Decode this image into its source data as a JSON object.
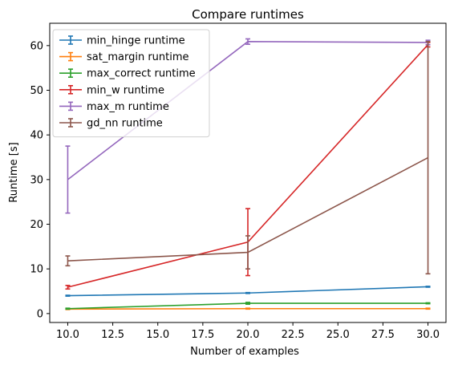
{
  "chart_data": {
    "type": "line",
    "title": "Compare runtimes",
    "xlabel": "Number of examples",
    "ylabel": "Runtime [s]",
    "xlim": [
      9.0,
      31.0
    ],
    "ylim": [
      -2.0,
      65.0
    ],
    "xticks": [
      10.0,
      12.5,
      15.0,
      17.5,
      20.0,
      22.5,
      25.0,
      27.5,
      30.0
    ],
    "xtick_labels": [
      "10.0",
      "12.5",
      "15.0",
      "17.5",
      "20.0",
      "22.5",
      "25.0",
      "27.5",
      "30.0"
    ],
    "yticks": [
      0,
      10,
      20,
      30,
      40,
      50,
      60
    ],
    "ytick_labels": [
      "0",
      "10",
      "20",
      "30",
      "40",
      "50",
      "60"
    ],
    "grid": false,
    "legend_position": "top-left",
    "x": [
      10,
      20,
      30
    ],
    "series": [
      {
        "name": "min_hinge runtime",
        "color": "#1f77b4",
        "values": [
          4.0,
          4.6,
          6.0
        ],
        "err": [
          0.1,
          0.1,
          0.1
        ]
      },
      {
        "name": "sat_margin runtime",
        "color": "#ff7f0e",
        "values": [
          1.0,
          1.1,
          1.1
        ],
        "err": [
          0.1,
          0.1,
          0.1
        ]
      },
      {
        "name": "max_correct runtime",
        "color": "#2ca02c",
        "values": [
          1.1,
          2.3,
          2.3
        ],
        "err": [
          0.1,
          0.2,
          0.1
        ]
      },
      {
        "name": "min_w runtime",
        "color": "#d62728",
        "values": [
          5.9,
          16.0,
          60.2
        ],
        "err": [
          0.4,
          7.5,
          0.5
        ]
      },
      {
        "name": "max_m runtime",
        "color": "#9467bd",
        "values": [
          30.0,
          60.9,
          60.7
        ],
        "err": [
          7.5,
          0.6,
          0.5
        ]
      },
      {
        "name": "gd_nn runtime",
        "color": "#8c564b",
        "values": [
          11.8,
          13.7,
          34.9
        ],
        "err": [
          1.1,
          3.7,
          26.0
        ]
      }
    ]
  }
}
